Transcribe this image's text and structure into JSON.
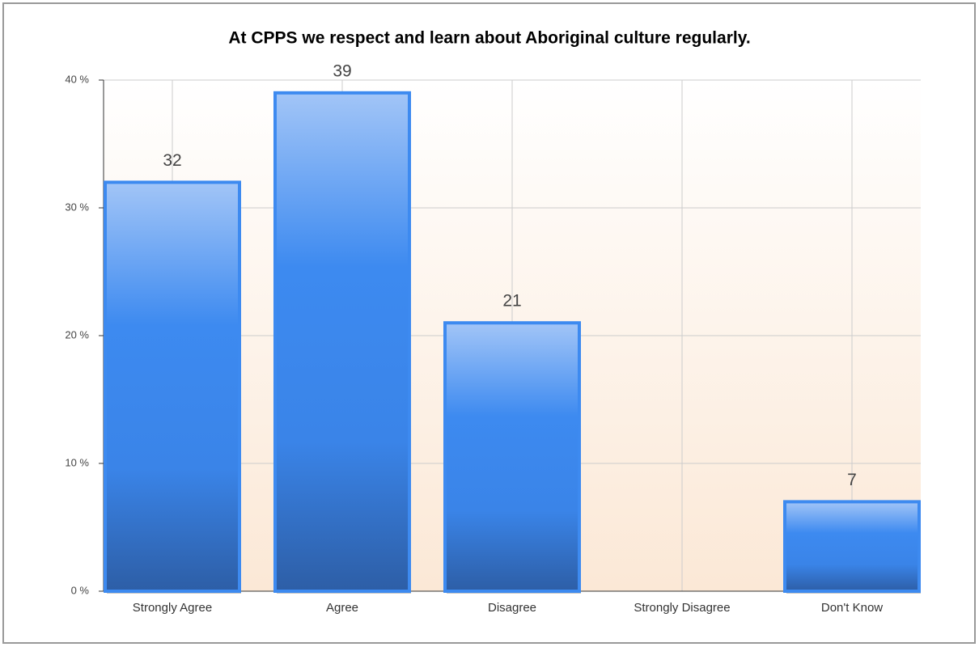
{
  "chart_data": {
    "type": "bar",
    "title": "At CPPS we respect and learn about Aboriginal culture regularly.",
    "categories": [
      "Strongly Agree",
      "Agree",
      "Disagree",
      "Strongly Disagree",
      "Don't Know"
    ],
    "values": [
      32,
      39,
      21,
      0,
      7
    ],
    "value_labels": [
      "32",
      "39",
      "21",
      null,
      "7"
    ],
    "color": "#3d8af0",
    "ylim": [
      0,
      40
    ],
    "yticks": [
      {
        "value": 0,
        "label": "0 %"
      },
      {
        "value": 10,
        "label": "10 %"
      },
      {
        "value": 20,
        "label": "20 %"
      },
      {
        "value": 30,
        "label": "30 %"
      },
      {
        "value": 40,
        "label": "40 %"
      }
    ],
    "grid": true
  }
}
